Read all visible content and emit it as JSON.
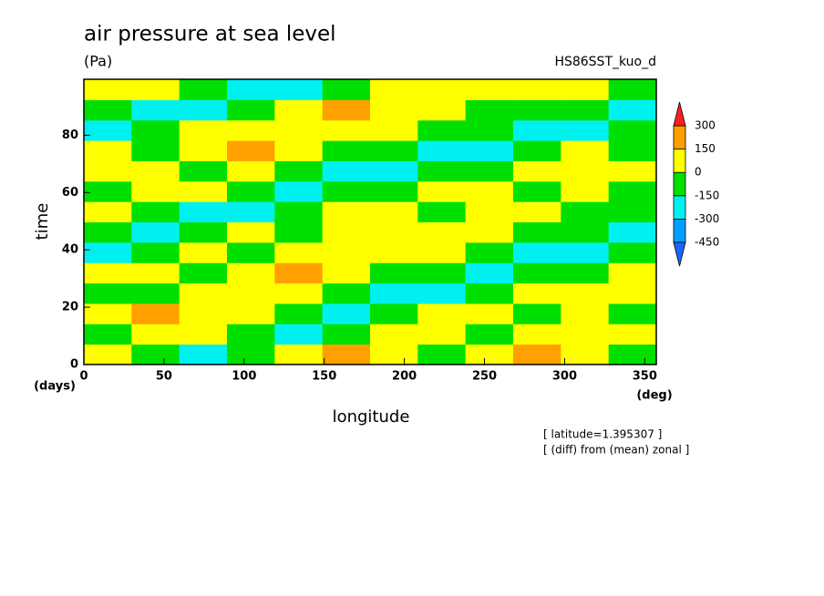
{
  "chart_data": {
    "type": "heatmap",
    "title": "air pressure at sea level",
    "units": "(Pa)",
    "run_label": "HS86SST_kuo_d",
    "x_label": "longitude",
    "x_unit": "(deg)",
    "y_label": "time",
    "y_unit": "(days)",
    "notes": [
      "[ latitude=1.395307 ]",
      "[ (diff) from (mean) zonal ]"
    ],
    "xlim": [
      0,
      357.2
    ],
    "ylim": [
      0,
      99.5
    ],
    "xticks": [
      0,
      50,
      100,
      150,
      200,
      250,
      300,
      350
    ],
    "yticks": [
      0,
      20,
      40,
      60,
      80
    ],
    "levels": [
      -450,
      -300,
      -150,
      0,
      150,
      300
    ],
    "colors": [
      "#1e64ff",
      "#00a0ff",
      "#00f0f0",
      "#00e000",
      "#ffff00",
      "#ffa000",
      "#ff1e1e"
    ],
    "z": [
      [
        50,
        -50,
        -200,
        -50,
        50,
        180,
        50,
        -50,
        50,
        180,
        50,
        -50
      ],
      [
        -50,
        50,
        50,
        -150,
        -200,
        -50,
        50,
        50,
        -50,
        50,
        120,
        50
      ],
      [
        50,
        180,
        50,
        50,
        -50,
        -200,
        -50,
        50,
        50,
        -50,
        50,
        -50
      ],
      [
        -50,
        -50,
        50,
        50,
        50,
        -50,
        -200,
        -200,
        -50,
        50,
        50,
        50
      ],
      [
        50,
        50,
        -50,
        50,
        180,
        50,
        -50,
        -50,
        -200,
        -50,
        -50,
        50
      ],
      [
        -200,
        -50,
        50,
        -50,
        50,
        50,
        50,
        50,
        -50,
        -200,
        -200,
        -50
      ],
      [
        -50,
        -200,
        -50,
        50,
        -50,
        50,
        120,
        50,
        50,
        -50,
        -50,
        -200
      ],
      [
        50,
        -50,
        -200,
        -200,
        -50,
        50,
        50,
        -50,
        50,
        50,
        -50,
        -50
      ],
      [
        -50,
        50,
        50,
        -50,
        -200,
        -50,
        -50,
        50,
        50,
        -50,
        50,
        -50
      ],
      [
        50,
        50,
        -50,
        50,
        -50,
        -200,
        -200,
        -50,
        -50,
        50,
        50,
        50
      ],
      [
        50,
        -50,
        50,
        180,
        50,
        -50,
        -50,
        -200,
        -200,
        -50,
        50,
        -50
      ],
      [
        -200,
        -50,
        50,
        50,
        50,
        50,
        50,
        -50,
        -50,
        -200,
        -200,
        -50
      ],
      [
        -50,
        -200,
        -200,
        -50,
        50,
        180,
        50,
        50,
        -50,
        -50,
        -50,
        -200
      ],
      [
        50,
        50,
        -50,
        -200,
        -200,
        -50,
        50,
        50,
        120,
        50,
        50,
        -50
      ]
    ]
  }
}
